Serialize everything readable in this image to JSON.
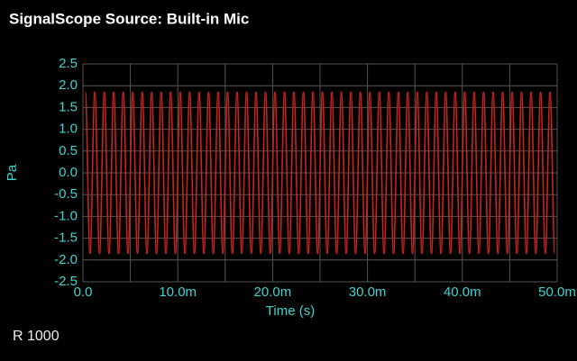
{
  "chart_data": {
    "type": "line",
    "title": "SignalScope Source:  Built-in Mic",
    "x_label": "Time (s)",
    "y_label": "Pa",
    "annotation": "R 1000",
    "xlim": [
      0,
      0.05
    ],
    "ylim": [
      -2.5,
      2.5
    ],
    "xticks": [
      {
        "value": 0,
        "label": "0.0"
      },
      {
        "value": 0.01,
        "label": "10.0m"
      },
      {
        "value": 0.02,
        "label": "20.0m"
      },
      {
        "value": 0.03,
        "label": "30.0m"
      },
      {
        "value": 0.04,
        "label": "40.0m"
      },
      {
        "value": 0.05,
        "label": "50.0m"
      }
    ],
    "x_minor_ticks": [
      0.005,
      0.015,
      0.025,
      0.035,
      0.045
    ],
    "yticks": [
      2.5,
      {
        "value": 2,
        "label": "2.0"
      },
      1.5,
      {
        "value": 1,
        "label": "1.0"
      },
      0.5,
      {
        "value": 0,
        "label": "0.0"
      },
      -0.5,
      {
        "value": -1,
        "label": "-1.0"
      },
      -1.5,
      {
        "value": -2,
        "label": "-2.0"
      },
      -2.5
    ],
    "grid": true,
    "series": [
      {
        "color": "#c8241c",
        "x": [
          0.00025,
          0.00075,
          0.00125,
          0.00175,
          0.00225,
          0.00275,
          0.00325,
          0.00375,
          0.00425,
          0.00475,
          0.00525,
          0.00575,
          0.00625,
          0.00675,
          0.00725,
          0.00775,
          0.00825,
          0.00875,
          0.00925,
          0.00975,
          0.01025,
          0.01075,
          0.01125,
          0.01175,
          0.01225,
          0.01275,
          0.01325,
          0.01375,
          0.01425,
          0.01475,
          0.01525,
          0.01575,
          0.01625,
          0.01675,
          0.01725,
          0.01775,
          0.01825,
          0.01875,
          0.01925,
          0.01975,
          0.02025,
          0.02075,
          0.02125,
          0.02175,
          0.02225,
          0.02275,
          0.02325,
          0.02375,
          0.02425,
          0.02475,
          0.02525,
          0.02575,
          0.02625,
          0.02675,
          0.02725,
          0.02775,
          0.02825,
          0.02875,
          0.02925,
          0.02975,
          0.03025,
          0.03075,
          0.03125,
          0.03175,
          0.03225,
          0.03275,
          0.03325,
          0.03375,
          0.03425,
          0.03475,
          0.03525,
          0.03575,
          0.03625,
          0.03675,
          0.03725,
          0.03775,
          0.03825,
          0.03875,
          0.03925,
          0.03975,
          0.04025,
          0.04075,
          0.04125,
          0.04175,
          0.04225,
          0.04275,
          0.04325,
          0.04375,
          0.04425,
          0.04475,
          0.04525,
          0.04575,
          0.04625,
          0.04675,
          0.04725,
          0.04775,
          0.04825,
          0.04875,
          0.04925,
          0.04975
        ],
        "values": [
          1.85,
          -1.85,
          1.85,
          -1.85,
          1.85,
          -1.85,
          1.85,
          -1.85,
          1.85,
          -1.85,
          1.85,
          -1.85,
          1.85,
          -1.85,
          1.85,
          -1.85,
          1.85,
          -1.85,
          1.85,
          -1.85,
          1.85,
          -1.85,
          1.85,
          -1.85,
          1.85,
          -1.85,
          1.85,
          -1.85,
          1.85,
          -1.85,
          1.85,
          -1.85,
          1.85,
          -1.85,
          1.85,
          -1.85,
          1.85,
          -1.85,
          1.85,
          -1.85,
          1.85,
          -1.85,
          1.85,
          -1.85,
          1.85,
          -1.85,
          1.85,
          -1.85,
          1.85,
          -1.85,
          1.85,
          -1.85,
          1.85,
          -1.85,
          1.85,
          -1.85,
          1.85,
          -1.85,
          1.85,
          -1.85,
          1.85,
          -1.85,
          1.85,
          -1.85,
          1.85,
          -1.85,
          1.85,
          -1.85,
          1.85,
          -1.85,
          1.85,
          -1.85,
          1.85,
          -1.85,
          1.85,
          -1.85,
          1.85,
          -1.85,
          1.85,
          -1.85,
          1.85,
          -1.85,
          1.85,
          -1.85,
          1.85,
          -1.85,
          1.85,
          -1.85,
          1.85,
          -1.85,
          1.85,
          -1.85,
          1.85,
          -1.85,
          1.85,
          -1.85,
          1.85,
          -1.85,
          1.85,
          -1.85
        ]
      }
    ]
  }
}
